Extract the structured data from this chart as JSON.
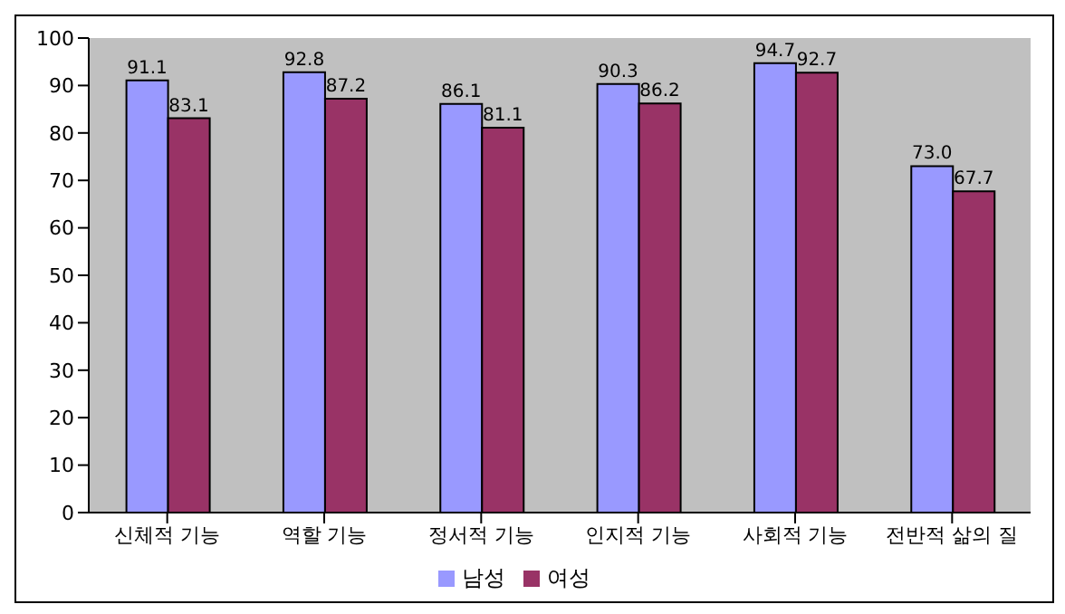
{
  "chart_data": {
    "type": "bar",
    "categories": [
      "신체적 기능",
      "역할 기능",
      "정서적 기능",
      "인지적 기능",
      "사회적 기능",
      "전반적 삶의 질"
    ],
    "series": [
      {
        "name": "남성",
        "color": "#9999ff",
        "values": [
          91.1,
          92.8,
          86.1,
          90.3,
          94.7,
          73.0
        ],
        "value_labels": [
          "91.1",
          "92.8",
          "86.1",
          "90.3",
          "94.7",
          "73.0"
        ]
      },
      {
        "name": "여성",
        "color": "#993366",
        "values": [
          83.1,
          87.2,
          81.1,
          86.2,
          92.7,
          67.7
        ],
        "value_labels": [
          "83.1",
          "87.2",
          "81.1",
          "86.2",
          "92.7",
          "67.7"
        ]
      }
    ],
    "ylim": [
      0,
      100
    ],
    "yticks": [
      0,
      10,
      20,
      30,
      40,
      50,
      60,
      70,
      80,
      90,
      100
    ],
    "legend": "bottom",
    "grid": false
  }
}
